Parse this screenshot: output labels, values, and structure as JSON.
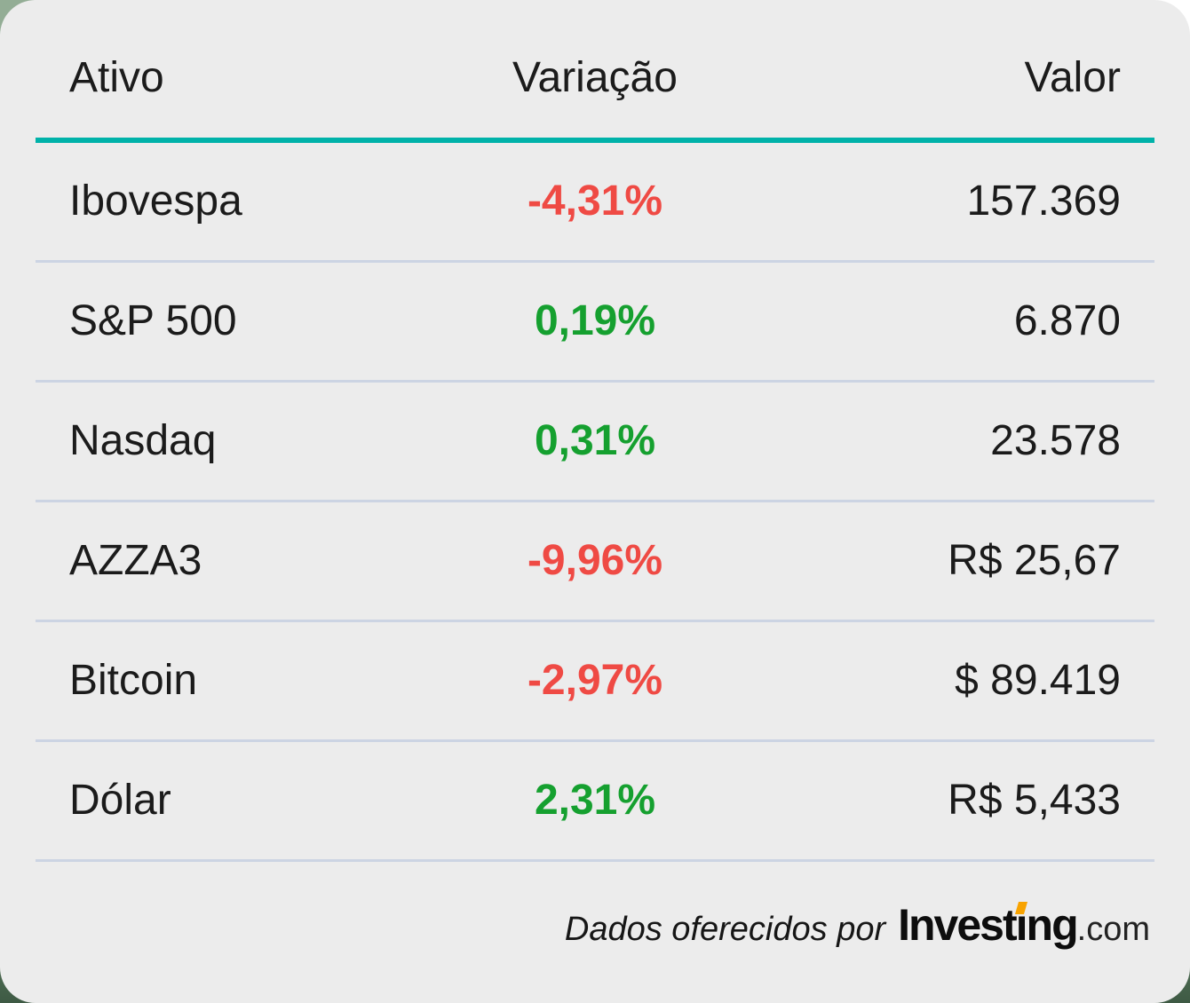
{
  "chart_data": {
    "type": "table",
    "columns": [
      "Ativo",
      "Variação",
      "Valor"
    ],
    "rows": [
      {
        "ativo": "Ibovespa",
        "variacao": "-4,31%",
        "trend": "down",
        "valor": "157.369"
      },
      {
        "ativo": "S&P 500",
        "variacao": "0,19%",
        "trend": "up",
        "valor": "6.870"
      },
      {
        "ativo": "Nasdaq",
        "variacao": "0,31%",
        "trend": "up",
        "valor": "23.578"
      },
      {
        "ativo": "AZZA3",
        "variacao": "-9,96%",
        "trend": "down",
        "valor": "R$ 25,67"
      },
      {
        "ativo": "Bitcoin",
        "variacao": "-2,97%",
        "trend": "down",
        "valor": "$ 89.419"
      },
      {
        "ativo": "Dólar",
        "variacao": "2,31%",
        "trend": "up",
        "valor": "R$ 5,433"
      }
    ]
  },
  "footer": {
    "credit": "Dados oferecidos por",
    "logo_part1": "Invest",
    "logo_i": "ı",
    "logo_part2": "ng",
    "logo_suffix": ".com"
  },
  "colors": {
    "positive": "#15a02f",
    "negative": "#ef4a44",
    "accent_teal": "#00b2a9",
    "separator": "#ccd4e3",
    "card_bg": "#ececec",
    "logo_orange": "#f8a300"
  }
}
